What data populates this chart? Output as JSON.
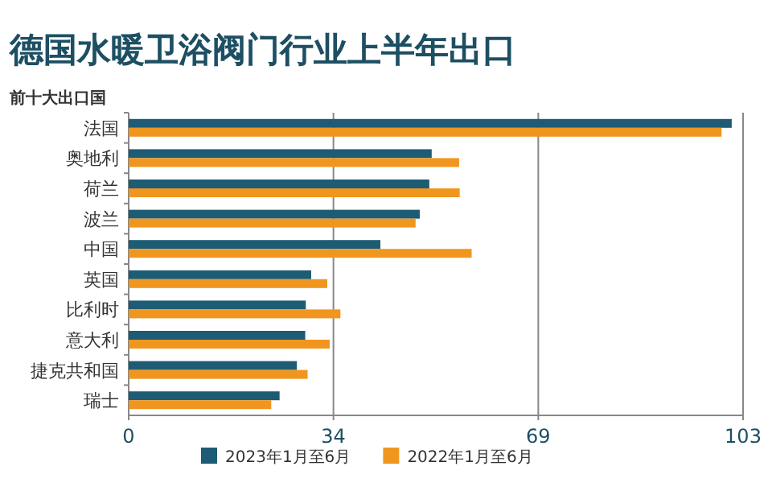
{
  "chart_data": {
    "type": "bar",
    "orientation": "horizontal",
    "title": "德国水暖卫浴阀门行业上半年出口",
    "subtitle": "前十大出口国",
    "categories": [
      "法国",
      "奥地利",
      "荷兰",
      "波兰",
      "中国",
      "英国",
      "比利时",
      "意大利",
      "捷克共和国",
      "瑞士"
    ],
    "series": [
      {
        "name": "2023年1月至6月",
        "color": "#1d5c74",
        "values": [
          101.1,
          50.8,
          50.4,
          48.8,
          42.2,
          30.6,
          29.7,
          29.6,
          28.2,
          25.3
        ]
      },
      {
        "name": "2022年1月至6月",
        "color": "#f0961e",
        "values": [
          99.4,
          55.4,
          55.5,
          48.1,
          57.5,
          33.3,
          35.5,
          33.7,
          30.0,
          23.9
        ]
      }
    ],
    "xlim": [
      0,
      103
    ],
    "xticks": [
      0,
      {
        "value": 34.33,
        "label": "34"
      },
      {
        "value": 68.67,
        "label": "69"
      },
      103
    ],
    "grid": "x",
    "legend": "bottom"
  }
}
